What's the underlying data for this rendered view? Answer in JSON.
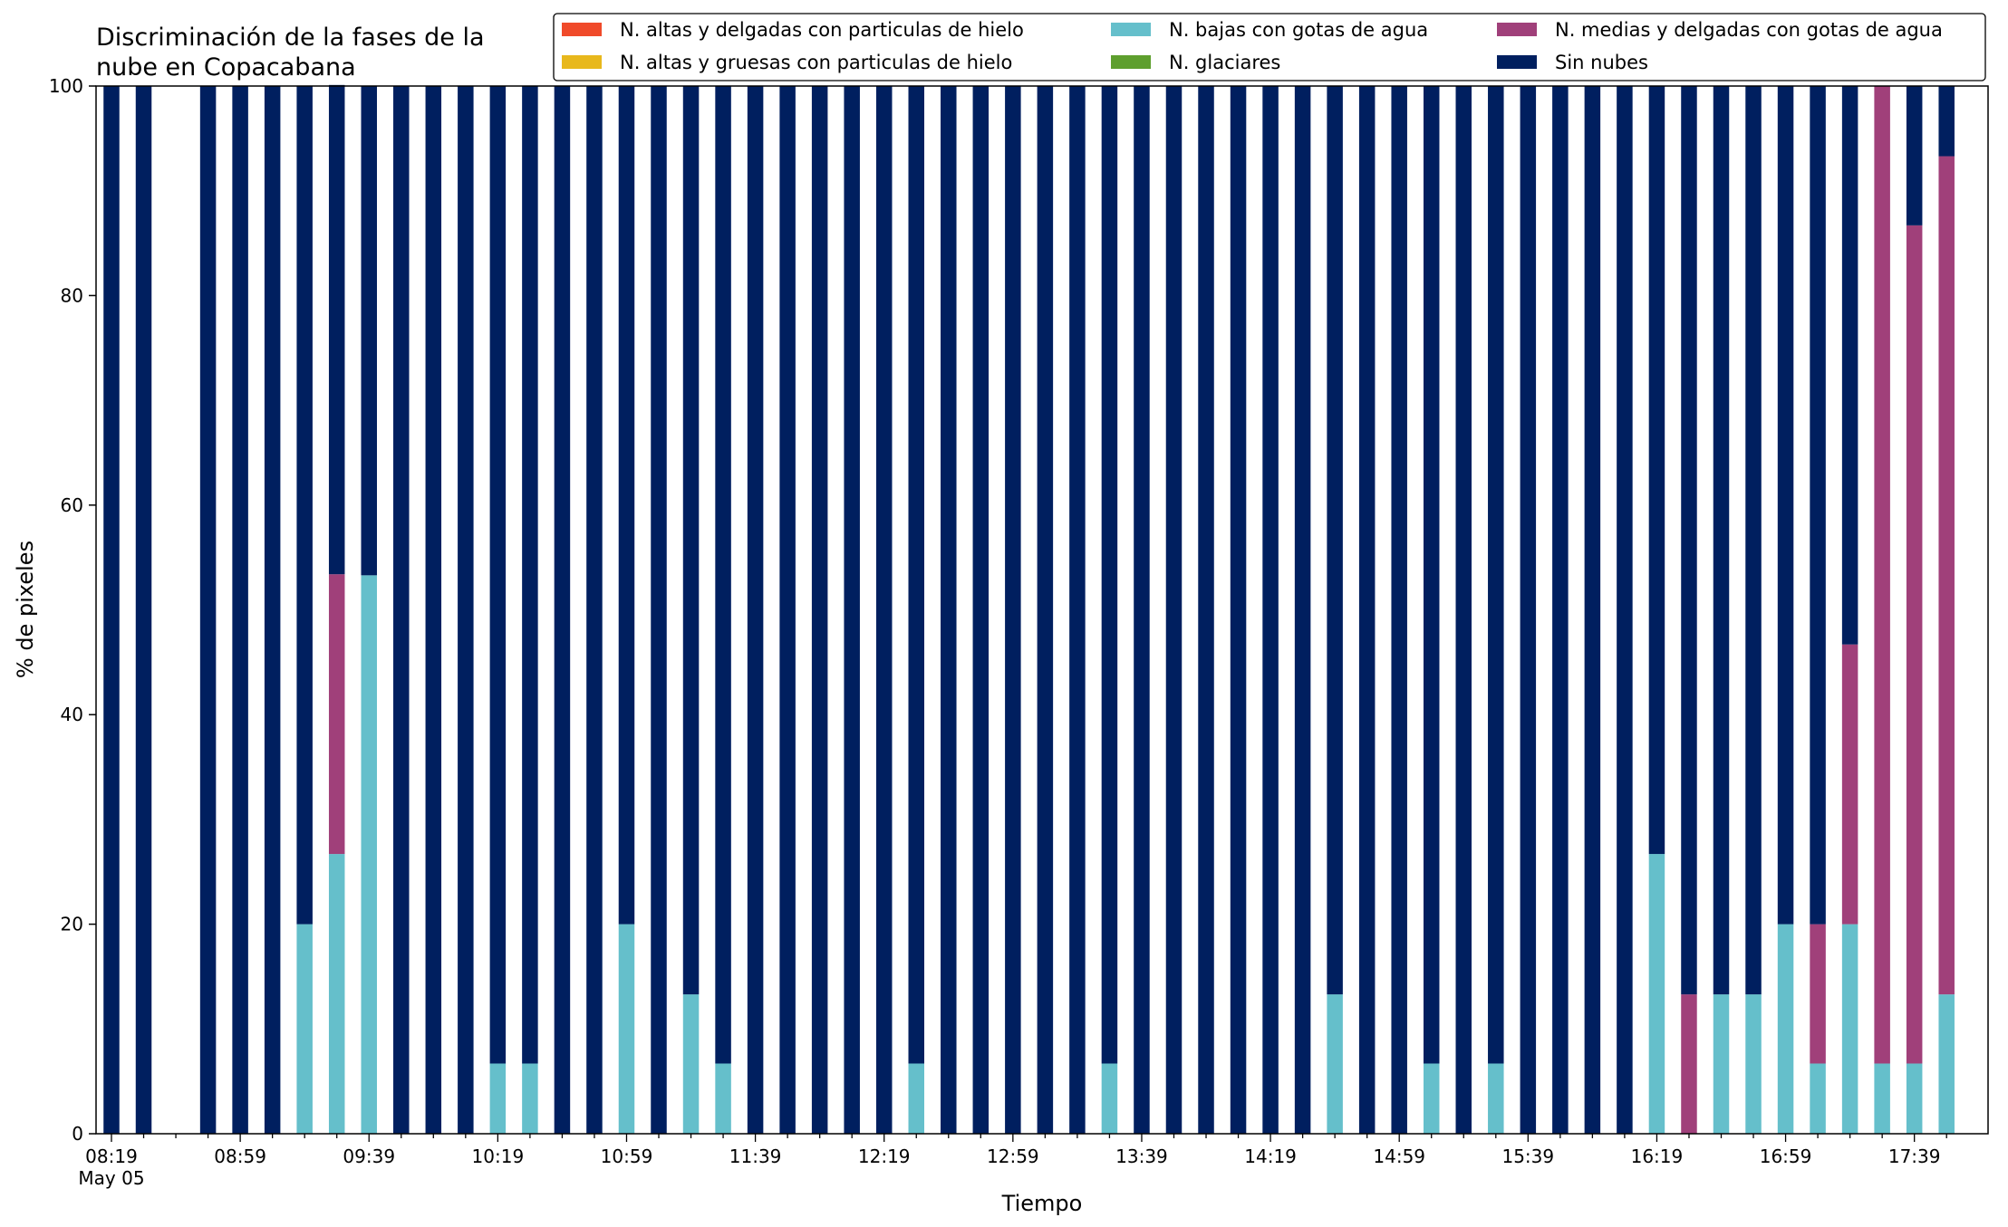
{
  "chart_data": {
    "type": "bar",
    "stacked": true,
    "title": "Discriminación de la fases de la\nnube en Copacabana",
    "xlabel": "Tiempo",
    "ylabel": "% de pixeles",
    "ylim": [
      0,
      100
    ],
    "yticks": [
      0,
      20,
      40,
      60,
      80,
      100
    ],
    "xtick_labels": [
      "08:19",
      "08:59",
      "09:39",
      "10:19",
      "10:59",
      "11:39",
      "12:19",
      "12:59",
      "13:39",
      "14:19",
      "14:59",
      "15:39",
      "16:19",
      "16:59",
      "17:39"
    ],
    "xtick_sublabel": "May 05",
    "legend_position": "top-right",
    "categories": [
      "08:19",
      "08:29",
      "08:39",
      "08:49",
      "08:59",
      "09:09",
      "09:19",
      "09:29",
      "09:39",
      "09:49",
      "09:59",
      "10:09",
      "10:19",
      "10:29",
      "10:39",
      "10:49",
      "10:59",
      "11:09",
      "11:19",
      "11:29",
      "11:39",
      "11:49",
      "11:59",
      "12:09",
      "12:19",
      "12:29",
      "12:39",
      "12:49",
      "12:59",
      "13:09",
      "13:19",
      "13:29",
      "13:39",
      "13:49",
      "13:59",
      "14:09",
      "14:19",
      "14:29",
      "14:39",
      "14:49",
      "14:59",
      "15:09",
      "15:19",
      "15:29",
      "15:39",
      "15:49",
      "15:59",
      "16:09",
      "16:19",
      "16:29",
      "16:39",
      "16:49",
      "16:59",
      "17:09",
      "17:19",
      "17:29",
      "17:39",
      "17:49"
    ],
    "series": [
      {
        "name": "N. altas y delgadas con particulas de hielo",
        "color": "#f04a2a",
        "values": [
          0,
          0,
          0,
          0,
          0,
          0,
          0,
          0,
          0,
          0,
          0,
          0,
          0,
          0,
          0,
          0,
          0,
          0,
          0,
          0,
          0,
          0,
          0,
          0,
          0,
          0,
          0,
          0,
          0,
          0,
          0,
          0,
          0,
          0,
          0,
          0,
          0,
          0,
          0,
          0,
          0,
          0,
          0,
          0,
          0,
          0,
          0,
          0,
          0,
          0,
          0,
          0,
          0,
          0,
          0,
          0,
          0,
          0
        ]
      },
      {
        "name": "N. altas y gruesas con particulas de hielo",
        "color": "#e8b81c",
        "values": [
          0,
          0,
          0,
          0,
          0,
          0,
          0,
          0,
          0,
          0,
          0,
          0,
          0,
          0,
          0,
          0,
          0,
          0,
          0,
          0,
          0,
          0,
          0,
          0,
          0,
          0,
          0,
          0,
          0,
          0,
          0,
          0,
          0,
          0,
          0,
          0,
          0,
          0,
          0,
          0,
          0,
          0,
          0,
          0,
          0,
          0,
          0,
          0,
          0,
          0,
          0,
          0,
          0,
          0,
          0,
          0,
          0,
          0
        ]
      },
      {
        "name": "N. bajas con gotas de agua",
        "color": "#65bfcb",
        "values": [
          0,
          0,
          0,
          0,
          0,
          0,
          20,
          26.7,
          53.3,
          0,
          0,
          0,
          6.7,
          6.7,
          0,
          0,
          20,
          0,
          13.3,
          6.7,
          0,
          0,
          0,
          0,
          0,
          6.7,
          0,
          0,
          0,
          0,
          0,
          6.7,
          0,
          0,
          0,
          0,
          0,
          0,
          13.3,
          0,
          0,
          6.7,
          0,
          6.7,
          0,
          0,
          0,
          0,
          26.7,
          0,
          13.3,
          13.3,
          20,
          6.7,
          20,
          6.7,
          6.7,
          13.3
        ]
      },
      {
        "name": "N. glaciares",
        "color": "#5e9f2e",
        "values": [
          0,
          0,
          0,
          0,
          0,
          0,
          0,
          0,
          0,
          0,
          0,
          0,
          0,
          0,
          0,
          0,
          0,
          0,
          0,
          0,
          0,
          0,
          0,
          0,
          0,
          0,
          0,
          0,
          0,
          0,
          0,
          0,
          0,
          0,
          0,
          0,
          0,
          0,
          0,
          0,
          0,
          0,
          0,
          0,
          0,
          0,
          0,
          0,
          0,
          0,
          0,
          0,
          0,
          0,
          0,
          0,
          0,
          0
        ]
      },
      {
        "name": "N. medias y delgadas con gotas de agua",
        "color": "#a0407a",
        "values": [
          0,
          0,
          0,
          0,
          0,
          0,
          0,
          26.7,
          0,
          0,
          0,
          0,
          0,
          0,
          0,
          0,
          0,
          0,
          0,
          0,
          0,
          0,
          0,
          0,
          0,
          0,
          0,
          0,
          0,
          0,
          0,
          0,
          0,
          0,
          0,
          0,
          0,
          0,
          0,
          0,
          0,
          0,
          0,
          0,
          0,
          0,
          0,
          0,
          0,
          13.3,
          0,
          0,
          0,
          13.3,
          26.7,
          93.3,
          80,
          80
        ]
      },
      {
        "name": "Sin nubes",
        "color": "#001f5f",
        "values": [
          100,
          100,
          0,
          100,
          100,
          100,
          80,
          46.7,
          46.7,
          100,
          100,
          100,
          93.3,
          93.3,
          100,
          100,
          80,
          100,
          86.7,
          93.3,
          100,
          100,
          100,
          100,
          100,
          93.3,
          100,
          100,
          100,
          100,
          100,
          93.3,
          100,
          100,
          100,
          100,
          100,
          100,
          86.7,
          100,
          100,
          93.3,
          100,
          93.3,
          100,
          100,
          100,
          100,
          73.3,
          86.7,
          86.7,
          86.7,
          80,
          80,
          53.3,
          0,
          13.3,
          6.7
        ]
      }
    ]
  }
}
